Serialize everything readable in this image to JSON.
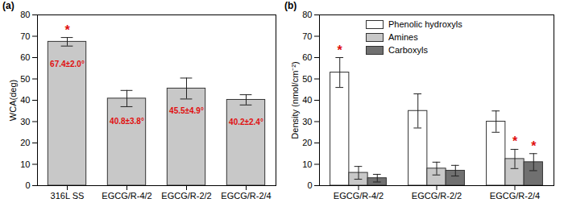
{
  "chart_data": [
    {
      "type": "bar",
      "title": "(a)",
      "y_label": "WCA(deg)",
      "categories": [
        "316L SS",
        "EGCG/R-4/2",
        "EGCG/R-2/2",
        "EGCG/R-2/4"
      ],
      "values": [
        67.4,
        40.8,
        45.5,
        40.2
      ],
      "errors": [
        2.0,
        3.8,
        4.9,
        2.4
      ],
      "value_labels": [
        "67.4±2.0°",
        "40.8±3.8°",
        "45.5±4.9°",
        "40.2±2.4°"
      ],
      "data_labels": true,
      "color": "#c8c8c8",
      "ylim": [
        0,
        80
      ],
      "yticks": [
        0,
        10,
        20,
        30,
        40,
        50,
        60,
        70,
        80
      ],
      "annotations": [
        {
          "category": "316L SS",
          "text": "*"
        }
      ]
    },
    {
      "type": "bar",
      "title": "(b)",
      "y_label": "Density (nmol/cm⁻²)",
      "categories": [
        "EGCG/R-4/2",
        "EGCG/R-2/2",
        "EGCG/R-2/4"
      ],
      "series": [
        {
          "name": "Phenolic hydroxyls",
          "color": "#ffffff",
          "values": [
            53,
            35,
            30
          ],
          "errors": [
            7,
            8,
            5
          ]
        },
        {
          "name": "Amines",
          "color": "#c8c8c8",
          "values": [
            6,
            8,
            12.5
          ],
          "errors": [
            3,
            3,
            4.5
          ]
        },
        {
          "name": "Carboxyls",
          "color": "#707070",
          "values": [
            3.5,
            7,
            11
          ],
          "errors": [
            1.8,
            2.5,
            4
          ]
        }
      ],
      "legend": "top",
      "ylim": [
        0,
        80
      ],
      "yticks": [
        0,
        10,
        20,
        30,
        40,
        50,
        60,
        70,
        80
      ],
      "annotations": [
        {
          "category": "EGCG/R-4/2",
          "series": "Phenolic hydroxyls",
          "text": "*"
        },
        {
          "category": "EGCG/R-2/4",
          "series": "Amines",
          "text": "*"
        },
        {
          "category": "EGCG/R-2/4",
          "series": "Carboxyls",
          "text": "*"
        }
      ]
    }
  ]
}
